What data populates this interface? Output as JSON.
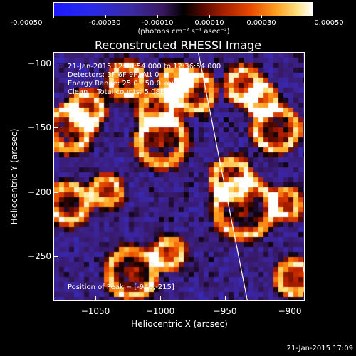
{
  "colorbar": {
    "tick_labels": [
      "-0.00050",
      "-0.00030",
      "-0.00010",
      "0.00010",
      "0.00030",
      "0.00050"
    ],
    "units": "(photons cm⁻² s⁻¹ asec⁻²)"
  },
  "chart_data": {
    "type": "heatmap",
    "title": "Reconstructed RHESSI Image",
    "xlabel": "Heliocentric X (arcsec)",
    "ylabel": "Heliocentric Y (arcsec)",
    "xlim": [
      -1082,
      -888
    ],
    "ylim": [
      -286,
      -91
    ],
    "x_ticks": [
      -1050,
      -1000,
      -950,
      -900
    ],
    "y_ticks": [
      -100,
      -150,
      -200,
      -250
    ],
    "x_tick_labels": [
      "−1050",
      "−1000",
      "−950",
      "−900"
    ],
    "y_tick_labels": [
      "−100",
      "−150",
      "−200",
      "−250"
    ],
    "colorscale": "red-temperature (blue negative, black zero, white positive)",
    "value_range": [
      -0.0005,
      0.0005
    ],
    "limb_line": [
      {
        "x": -970,
        "y": -91
      },
      {
        "x": -932,
        "y": -286
      }
    ],
    "peak_position": [
      -940,
      -215
    ]
  },
  "annotations": {
    "time_range": "21-Jan-2015 12:30:54.000 to 12:36:54.000",
    "detectors": "Detectors: 3F 6F 9F, Att 0",
    "energy": "Energy Range: 25.0 - 50.0 keV",
    "clean": "Clean    Total counts: 5.08E+03",
    "peak": "Position of Peak = [-940,-215]"
  },
  "timestamp": "21-Jan-2015 17:09"
}
